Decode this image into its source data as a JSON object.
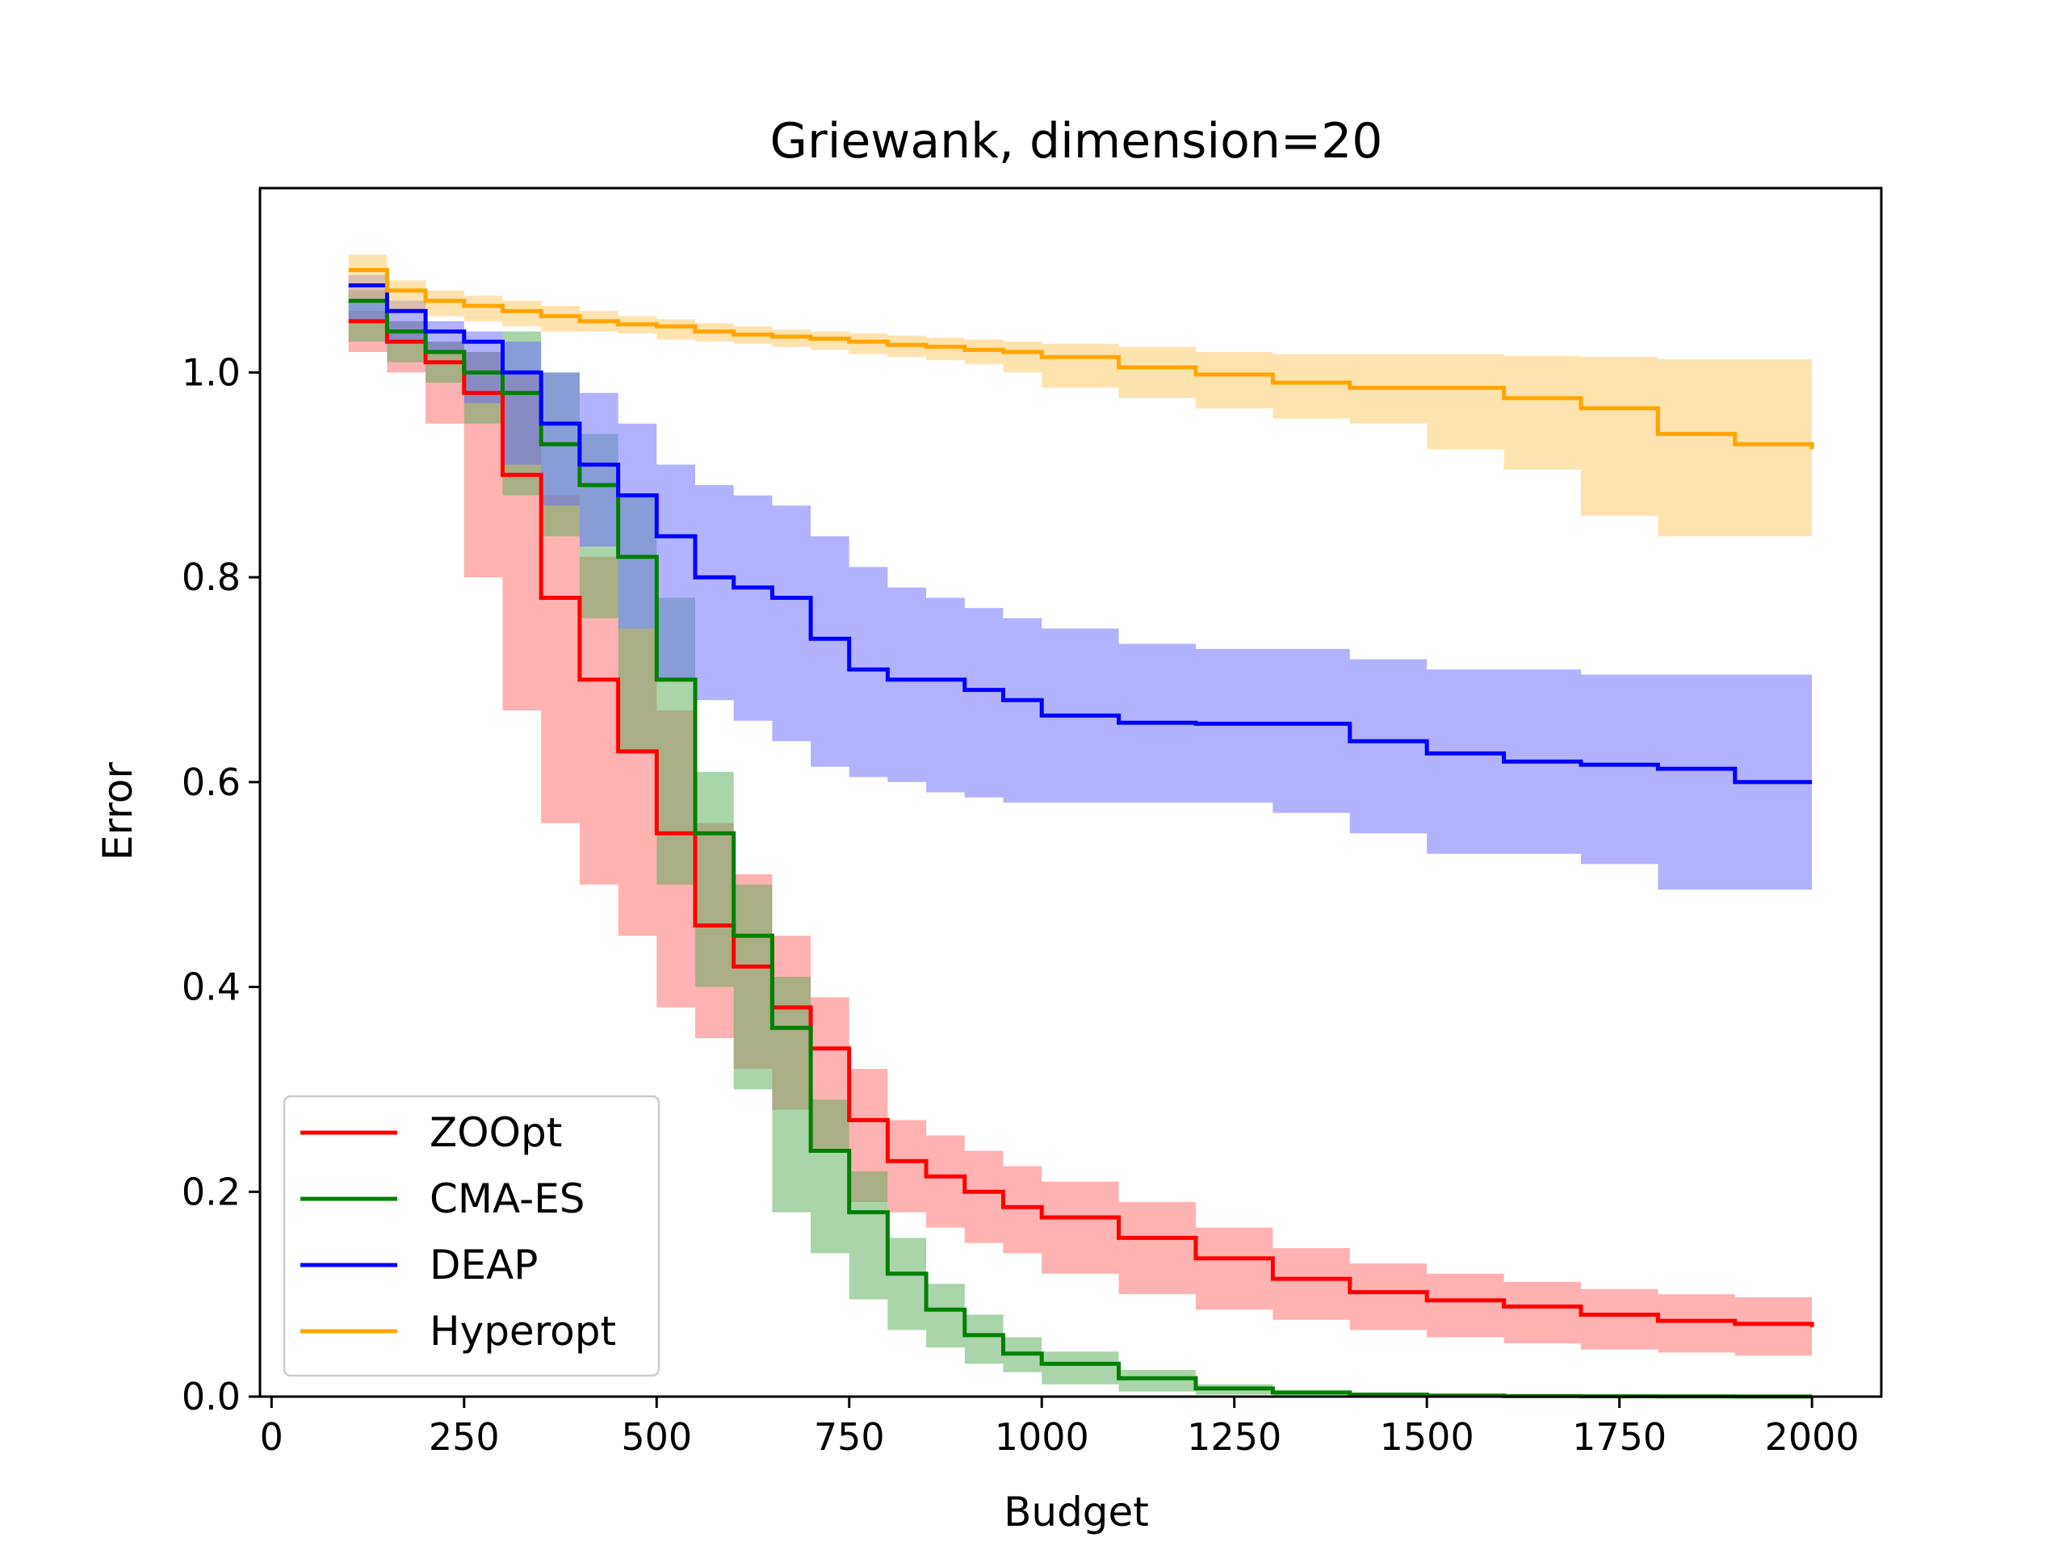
{
  "chart_data": {
    "type": "line",
    "title": "Griewank, dimension=20",
    "xlabel": "Budget",
    "ylabel": "Error",
    "xlim": [
      -15,
      2090
    ],
    "ylim": [
      0,
      1.18
    ],
    "xticks": [
      0,
      250,
      500,
      750,
      1000,
      1250,
      1500,
      1750,
      2000
    ],
    "xtick_labels": [
      "0",
      "250",
      "500",
      "750",
      "1000",
      "1250",
      "1500",
      "1750",
      "2000"
    ],
    "yticks": [
      0.0,
      0.2,
      0.4,
      0.6,
      0.8,
      1.0
    ],
    "ytick_labels": [
      "0.0",
      "0.2",
      "0.4",
      "0.6",
      "0.8",
      "1.0"
    ],
    "grid": false,
    "legend_position": "lower-left",
    "x": [
      100,
      150,
      200,
      250,
      300,
      350,
      400,
      450,
      500,
      550,
      600,
      650,
      700,
      750,
      800,
      850,
      900,
      950,
      1000,
      1100,
      1200,
      1300,
      1400,
      1500,
      1600,
      1700,
      1800,
      1900,
      2000
    ],
    "series": [
      {
        "name": "ZOOpt",
        "color": "#ff0000",
        "band_color": "#ff6666",
        "mean": [
          1.05,
          1.03,
          1.01,
          0.98,
          0.9,
          0.78,
          0.7,
          0.63,
          0.55,
          0.46,
          0.42,
          0.38,
          0.34,
          0.27,
          0.23,
          0.215,
          0.2,
          0.185,
          0.175,
          0.155,
          0.135,
          0.115,
          0.102,
          0.094,
          0.088,
          0.08,
          0.074,
          0.071,
          0.068
        ],
        "lower": [
          1.04,
          1.02,
          1.0,
          0.95,
          0.8,
          0.67,
          0.56,
          0.5,
          0.45,
          0.38,
          0.35,
          0.32,
          0.28,
          0.24,
          0.19,
          0.18,
          0.165,
          0.15,
          0.14,
          0.12,
          0.1,
          0.085,
          0.075,
          0.065,
          0.058,
          0.052,
          0.046,
          0.043,
          0.04
        ],
        "upper": [
          1.06,
          1.05,
          1.03,
          1.02,
          1.0,
          0.88,
          0.82,
          0.75,
          0.67,
          0.56,
          0.51,
          0.45,
          0.39,
          0.32,
          0.27,
          0.255,
          0.24,
          0.225,
          0.21,
          0.19,
          0.165,
          0.145,
          0.13,
          0.12,
          0.112,
          0.105,
          0.1,
          0.097,
          0.095
        ]
      },
      {
        "name": "CMA-ES",
        "color": "#008000",
        "band_color": "#55aa55",
        "mean": [
          1.07,
          1.04,
          1.02,
          1.0,
          0.98,
          0.93,
          0.89,
          0.82,
          0.7,
          0.55,
          0.45,
          0.36,
          0.24,
          0.18,
          0.12,
          0.085,
          0.06,
          0.042,
          0.032,
          0.018,
          0.008,
          0.004,
          0.002,
          0.001,
          0.0005,
          0.0003,
          0.0002,
          0.0001,
          0.0001
        ],
        "lower": [
          1.06,
          1.03,
          1.01,
          0.99,
          0.95,
          0.88,
          0.84,
          0.76,
          0.63,
          0.5,
          0.4,
          0.3,
          0.18,
          0.14,
          0.095,
          0.065,
          0.048,
          0.032,
          0.024,
          0.012,
          0.005,
          0.002,
          0.001,
          0.0005,
          0.0002,
          0.0001,
          0.0001,
          0.0,
          0.0
        ],
        "upper": [
          1.08,
          1.05,
          1.03,
          1.02,
          1.04,
          1.0,
          0.94,
          0.88,
          0.78,
          0.61,
          0.5,
          0.41,
          0.29,
          0.22,
          0.155,
          0.11,
          0.08,
          0.058,
          0.044,
          0.026,
          0.012,
          0.006,
          0.003,
          0.0015,
          0.0008,
          0.0005,
          0.0003,
          0.0002,
          0.0002
        ]
      },
      {
        "name": "DEAP",
        "color": "#0000ff",
        "band_color": "#6666ff",
        "mean": [
          1.085,
          1.06,
          1.04,
          1.03,
          1.0,
          0.95,
          0.91,
          0.88,
          0.84,
          0.8,
          0.79,
          0.78,
          0.74,
          0.71,
          0.7,
          0.7,
          0.69,
          0.68,
          0.665,
          0.658,
          0.657,
          0.657,
          0.64,
          0.628,
          0.62,
          0.617,
          0.613,
          0.6,
          0.6
        ],
        "lower": [
          1.075,
          1.05,
          1.03,
          1.02,
          0.97,
          0.91,
          0.87,
          0.83,
          0.75,
          0.7,
          0.68,
          0.66,
          0.64,
          0.615,
          0.605,
          0.6,
          0.59,
          0.585,
          0.58,
          0.58,
          0.58,
          0.58,
          0.57,
          0.55,
          0.53,
          0.53,
          0.52,
          0.495,
          0.495
        ],
        "upper": [
          1.095,
          1.07,
          1.05,
          1.04,
          1.03,
          1.0,
          0.98,
          0.95,
          0.91,
          0.89,
          0.88,
          0.87,
          0.84,
          0.81,
          0.79,
          0.78,
          0.77,
          0.76,
          0.75,
          0.735,
          0.73,
          0.73,
          0.72,
          0.71,
          0.71,
          0.705,
          0.705,
          0.705,
          0.705
        ]
      },
      {
        "name": "Hyperopt",
        "color": "#ffa500",
        "band_color": "#ffc860",
        "mean": [
          1.1,
          1.08,
          1.07,
          1.065,
          1.06,
          1.055,
          1.05,
          1.047,
          1.045,
          1.04,
          1.037,
          1.035,
          1.033,
          1.03,
          1.027,
          1.025,
          1.022,
          1.02,
          1.015,
          1.005,
          0.998,
          0.99,
          0.985,
          0.985,
          0.975,
          0.965,
          0.94,
          0.93,
          0.925
        ],
        "lower": [
          1.09,
          1.07,
          1.06,
          1.055,
          1.05,
          1.045,
          1.04,
          1.04,
          1.038,
          1.032,
          1.03,
          1.028,
          1.025,
          1.022,
          1.018,
          1.015,
          1.012,
          1.008,
          1.0,
          0.985,
          0.975,
          0.965,
          0.955,
          0.95,
          0.925,
          0.905,
          0.86,
          0.84,
          0.84
        ],
        "upper": [
          1.115,
          1.09,
          1.08,
          1.075,
          1.07,
          1.065,
          1.06,
          1.055,
          1.052,
          1.048,
          1.045,
          1.042,
          1.04,
          1.038,
          1.036,
          1.034,
          1.032,
          1.03,
          1.028,
          1.025,
          1.02,
          1.018,
          1.018,
          1.018,
          1.016,
          1.015,
          1.013,
          1.013,
          1.013
        ]
      }
    ]
  }
}
